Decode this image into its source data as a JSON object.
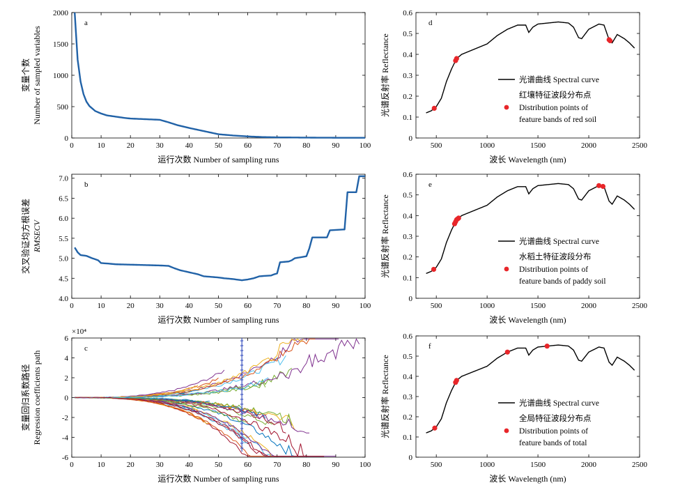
{
  "chart_data": [
    {
      "id": "a",
      "type": "line",
      "panel_label": "a",
      "xlabel": "运行次数 Number of sampling runs",
      "ylabel": [
        "变量个数",
        "Number of sampled variables"
      ],
      "xlim": [
        0,
        100
      ],
      "ylim": [
        0,
        2000
      ],
      "xticks": [
        0,
        10,
        20,
        30,
        40,
        50,
        60,
        70,
        80,
        90,
        100
      ],
      "yticks": [
        0,
        500,
        1000,
        1500,
        2000
      ],
      "color": "#2162a7",
      "x": [
        1,
        2,
        3,
        4,
        5,
        6,
        7,
        8,
        10,
        12,
        15,
        18,
        20,
        25,
        30,
        33,
        36,
        40,
        45,
        50,
        55,
        60,
        65,
        70,
        80,
        90,
        100
      ],
      "y": [
        2000,
        1250,
        900,
        700,
        580,
        510,
        470,
        430,
        390,
        360,
        340,
        320,
        310,
        300,
        290,
        250,
        205,
        160,
        110,
        60,
        40,
        25,
        15,
        10,
        6,
        4,
        3
      ]
    },
    {
      "id": "b",
      "type": "line",
      "panel_label": "b",
      "xlabel": "运行次数 Number of sampling runs",
      "ylabel": [
        "交叉验证均方根误差",
        "RMSECV"
      ],
      "xlim": [
        0,
        100
      ],
      "ylim": [
        4.0,
        7.1
      ],
      "xticks": [
        0,
        10,
        20,
        30,
        40,
        50,
        60,
        70,
        80,
        90,
        100
      ],
      "yticks": [
        4.0,
        4.5,
        5.0,
        5.5,
        6.0,
        6.5,
        7.0
      ],
      "ytick_labels": [
        "4.0",
        "4.5",
        "5.0",
        "5.5",
        "6.0",
        "6.5",
        "7.0"
      ],
      "color": "#2162a7",
      "x": [
        1,
        2,
        3,
        5,
        7,
        9,
        10,
        12,
        15,
        20,
        25,
        30,
        33,
        35,
        37,
        40,
        43,
        45,
        50,
        52,
        55,
        58,
        60,
        62,
        64,
        66,
        68,
        69,
        70,
        71,
        74,
        75,
        76,
        80,
        81,
        82,
        87,
        88,
        93,
        94,
        97,
        98,
        100
      ],
      "y": [
        5.27,
        5.15,
        5.08,
        5.06,
        5.0,
        4.95,
        4.88,
        4.87,
        4.85,
        4.84,
        4.83,
        4.82,
        4.81,
        4.75,
        4.7,
        4.65,
        4.6,
        4.55,
        4.52,
        4.5,
        4.48,
        4.45,
        4.47,
        4.5,
        4.55,
        4.56,
        4.57,
        4.6,
        4.62,
        4.9,
        4.92,
        4.95,
        5.0,
        5.05,
        5.25,
        5.52,
        5.52,
        5.7,
        5.72,
        6.65,
        6.65,
        7.05,
        7.05
      ]
    },
    {
      "id": "c",
      "type": "line",
      "panel_label": "c",
      "xlabel": "运行次数 Number of sampling runs",
      "ylabel": [
        "变量回归系数路径",
        "Regression coefficients path"
      ],
      "exponent_label": "×10⁴",
      "xlim": [
        0,
        100
      ],
      "ylim": [
        -6,
        6
      ],
      "xticks": [
        0,
        10,
        20,
        30,
        40,
        50,
        60,
        70,
        80,
        90,
        100
      ],
      "yticks": [
        -6,
        -4,
        -2,
        0,
        2,
        4,
        6
      ],
      "ytick_labels": [
        "-6",
        "-4",
        "-2",
        "0",
        "2",
        "4",
        "6"
      ],
      "marker_x": 58,
      "marker_color": "#3d55c0",
      "series_colors": [
        "#0072bd",
        "#d95319",
        "#edb120",
        "#7e2f8e",
        "#77ac30",
        "#4dbeee",
        "#a2142f"
      ]
    },
    {
      "id": "d",
      "type": "line",
      "panel_label": "d",
      "xlabel": "波长 Wavelength (nm)",
      "ylabel": [
        "光谱反射率 Reflectance"
      ],
      "xlim": [
        300,
        2500
      ],
      "ylim": [
        0,
        0.6
      ],
      "xticks": [
        500,
        1000,
        1500,
        2000,
        2500
      ],
      "yticks": [
        0,
        0.1,
        0.2,
        0.3,
        0.4,
        0.5,
        0.6
      ],
      "ytick_labels": [
        "0",
        "0.1",
        "0.2",
        "0.3",
        "0.4",
        "0.5",
        "0.6"
      ],
      "legend": {
        "line_label": "光谱曲线 Spectral curve",
        "heading": "红壤特征波段分布点",
        "point_label_1": "Distribution points of",
        "point_label_2": "feature bands of red soil"
      },
      "points_x": [
        480,
        690,
        700,
        2200,
        2210
      ],
      "point_color": "#e8262a"
    },
    {
      "id": "e",
      "type": "line",
      "panel_label": "e",
      "xlabel": "波长 Wavelength (nm)",
      "ylabel": [
        "光谱反射率 Reflectance"
      ],
      "xlim": [
        300,
        2500
      ],
      "ylim": [
        0,
        0.6
      ],
      "xticks": [
        500,
        1000,
        1500,
        2000,
        2500
      ],
      "yticks": [
        0,
        0.1,
        0.2,
        0.3,
        0.4,
        0.5,
        0.6
      ],
      "ytick_labels": [
        "0",
        "0.1",
        "0.2",
        "0.3",
        "0.4",
        "0.5",
        "0.6"
      ],
      "legend": {
        "line_label": "光谱曲线 Spectral curve",
        "heading": "水稻土特征波段分布",
        "point_label_1": "Distribution points of",
        "point_label_2": "feature bands of paddy soil"
      },
      "points_x": [
        475,
        680,
        690,
        700,
        710,
        720,
        2100,
        2140
      ],
      "point_color": "#e8262a"
    },
    {
      "id": "f",
      "type": "line",
      "panel_label": "f",
      "xlabel": "波长 Wavelength (nm)",
      "ylabel": [
        "光谱反射率 Reflectance"
      ],
      "xlim": [
        300,
        2500
      ],
      "ylim": [
        0,
        0.6
      ],
      "xticks": [
        500,
        1000,
        1500,
        2000,
        2500
      ],
      "yticks": [
        0,
        0.1,
        0.2,
        0.3,
        0.4,
        0.5,
        0.6
      ],
      "ytick_labels": [
        "0",
        "0.1",
        "0.2",
        "0.3",
        "0.4",
        "0.5",
        "0.6"
      ],
      "legend": {
        "line_label": "光谱曲线 Spectral curve",
        "heading": "全局特征波段分布点",
        "point_label_1": "Distribution points of",
        "point_label_2": "feature bands of total"
      },
      "points_x": [
        485,
        690,
        700,
        1200,
        1590
      ],
      "point_color": "#e8262a"
    }
  ],
  "spectrum": {
    "x": [
      400,
      450,
      500,
      550,
      600,
      650,
      700,
      750,
      800,
      900,
      1000,
      1100,
      1200,
      1300,
      1380,
      1410,
      1450,
      1500,
      1600,
      1700,
      1800,
      1850,
      1900,
      1930,
      2000,
      2100,
      2150,
      2200,
      2230,
      2280,
      2350,
      2400,
      2450
    ],
    "y": [
      0.12,
      0.13,
      0.15,
      0.19,
      0.27,
      0.33,
      0.38,
      0.4,
      0.41,
      0.43,
      0.45,
      0.49,
      0.52,
      0.54,
      0.54,
      0.505,
      0.53,
      0.545,
      0.55,
      0.555,
      0.55,
      0.53,
      0.48,
      0.475,
      0.52,
      0.545,
      0.54,
      0.47,
      0.455,
      0.495,
      0.475,
      0.455,
      0.43
    ]
  }
}
